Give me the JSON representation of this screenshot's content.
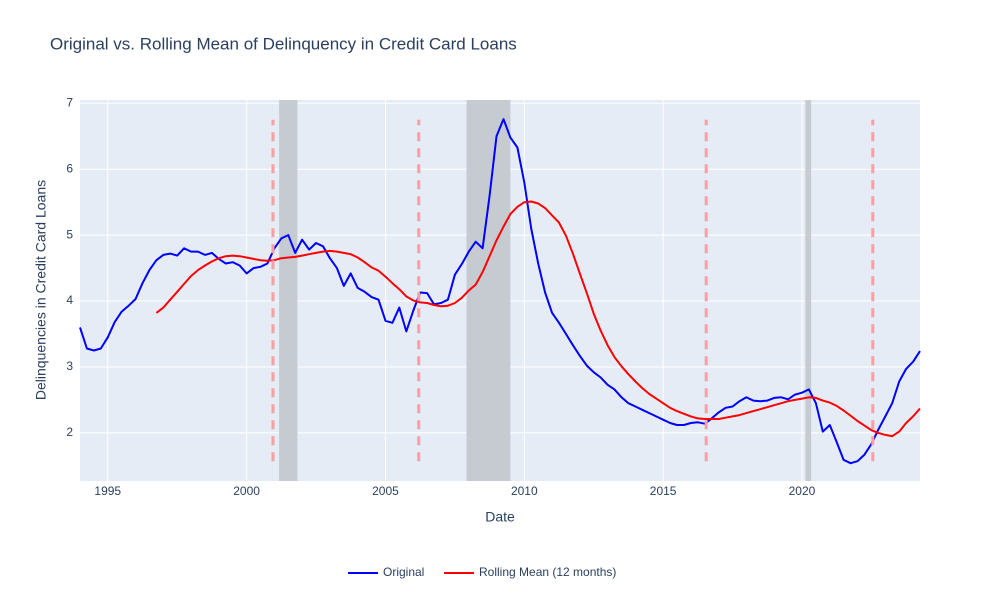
{
  "chart_data": {
    "type": "line",
    "title": "Original vs. Rolling Mean of Delinquency in Credit Card Loans",
    "x_label": "Date",
    "y_label": "Delinquencies in Credit Card Loans",
    "x": [
      1994,
      1994.25,
      1994.5,
      1994.75,
      1995,
      1995.25,
      1995.5,
      1995.75,
      1996,
      1996.25,
      1996.5,
      1996.75,
      1997,
      1997.25,
      1997.5,
      1997.75,
      1998,
      1998.25,
      1998.5,
      1998.75,
      1999,
      1999.25,
      1999.5,
      1999.75,
      2000,
      2000.25,
      2000.5,
      2000.75,
      2001,
      2001.25,
      2001.5,
      2001.75,
      2002,
      2002.25,
      2002.5,
      2002.75,
      2003,
      2003.25,
      2003.5,
      2003.75,
      2004,
      2004.25,
      2004.5,
      2004.75,
      2005,
      2005.25,
      2005.5,
      2005.75,
      2006,
      2006.25,
      2006.5,
      2006.75,
      2007,
      2007.25,
      2007.5,
      2007.75,
      2008,
      2008.25,
      2008.5,
      2008.75,
      2009,
      2009.25,
      2009.5,
      2009.75,
      2010,
      2010.25,
      2010.5,
      2010.75,
      2011,
      2011.25,
      2011.5,
      2011.75,
      2012,
      2012.25,
      2012.5,
      2012.75,
      2013,
      2013.25,
      2013.5,
      2013.75,
      2014,
      2014.25,
      2014.5,
      2014.75,
      2015,
      2015.25,
      2015.5,
      2015.75,
      2016,
      2016.25,
      2016.5,
      2016.75,
      2017,
      2017.25,
      2017.5,
      2017.75,
      2018,
      2018.25,
      2018.5,
      2018.75,
      2019,
      2019.25,
      2019.5,
      2019.75,
      2020,
      2020.25,
      2020.5,
      2020.75,
      2021,
      2021.25,
      2021.5,
      2021.75,
      2022,
      2022.25,
      2022.5,
      2022.75,
      2023,
      2023.25,
      2023.5,
      2023.75,
      2024,
      2024.25
    ],
    "series": [
      {
        "name": "Original",
        "color": "#0000ff",
        "values": [
          3.6,
          3.28,
          3.25,
          3.28,
          3.45,
          3.68,
          3.84,
          3.93,
          4.03,
          4.27,
          4.47,
          4.62,
          4.7,
          4.72,
          4.69,
          4.8,
          4.75,
          4.75,
          4.7,
          4.73,
          4.64,
          4.57,
          4.59,
          4.54,
          4.42,
          4.5,
          4.52,
          4.57,
          4.8,
          4.95,
          5.0,
          4.73,
          4.93,
          4.78,
          4.88,
          4.83,
          4.65,
          4.5,
          4.23,
          4.42,
          4.2,
          4.14,
          4.06,
          4.02,
          3.7,
          3.67,
          3.9,
          3.54,
          3.85,
          4.13,
          4.12,
          3.95,
          3.97,
          4.02,
          4.4,
          4.56,
          4.75,
          4.9,
          4.8,
          5.6,
          6.5,
          6.76,
          6.48,
          6.33,
          5.8,
          5.1,
          4.57,
          4.13,
          3.82,
          3.67,
          3.5,
          3.33,
          3.17,
          3.02,
          2.92,
          2.84,
          2.73,
          2.66,
          2.54,
          2.45,
          2.4,
          2.35,
          2.3,
          2.25,
          2.2,
          2.15,
          2.12,
          2.12,
          2.15,
          2.16,
          2.14,
          2.22,
          2.31,
          2.38,
          2.4,
          2.48,
          2.54,
          2.49,
          2.48,
          2.49,
          2.53,
          2.54,
          2.51,
          2.58,
          2.61,
          2.66,
          2.45,
          2.02,
          2.12,
          1.86,
          1.59,
          1.54,
          1.57,
          1.67,
          1.83,
          2.05,
          2.25,
          2.45,
          2.78,
          2.97,
          3.08,
          3.24
        ]
      },
      {
        "name": "Rolling Mean (12 months)",
        "color": "#ff0000",
        "values": [
          null,
          null,
          null,
          null,
          null,
          null,
          null,
          null,
          null,
          null,
          null,
          3.82,
          3.9,
          4.02,
          4.14,
          4.26,
          4.38,
          4.47,
          4.54,
          4.6,
          4.65,
          4.68,
          4.69,
          4.68,
          4.66,
          4.64,
          4.62,
          4.61,
          4.62,
          4.65,
          4.66,
          4.67,
          4.69,
          4.71,
          4.73,
          4.75,
          4.76,
          4.75,
          4.73,
          4.71,
          4.66,
          4.59,
          4.51,
          4.46,
          4.37,
          4.27,
          4.18,
          4.07,
          4.01,
          3.98,
          3.97,
          3.94,
          3.92,
          3.93,
          3.97,
          4.05,
          4.16,
          4.25,
          4.44,
          4.68,
          4.92,
          5.13,
          5.32,
          5.43,
          5.5,
          5.51,
          5.48,
          5.41,
          5.3,
          5.19,
          4.99,
          4.72,
          4.42,
          4.12,
          3.81,
          3.55,
          3.33,
          3.15,
          3.01,
          2.89,
          2.78,
          2.68,
          2.59,
          2.52,
          2.45,
          2.38,
          2.33,
          2.29,
          2.25,
          2.22,
          2.21,
          2.21,
          2.21,
          2.23,
          2.25,
          2.27,
          2.3,
          2.33,
          2.36,
          2.39,
          2.42,
          2.45,
          2.48,
          2.5,
          2.52,
          2.54,
          2.53,
          2.49,
          2.46,
          2.41,
          2.34,
          2.26,
          2.18,
          2.11,
          2.04,
          2.0,
          1.97,
          1.95,
          2.02,
          2.15,
          2.25,
          2.37
        ]
      }
    ],
    "shaded_regions": [
      {
        "x0": 2001.17,
        "x1": 2001.83
      },
      {
        "x0": 2007.92,
        "x1": 2009.5
      },
      {
        "x0": 2020.12,
        "x1": 2020.33
      }
    ],
    "shade_color": "#c6cbd2",
    "vlines": {
      "x": [
        2000.95,
        2006.2,
        2016.55,
        2022.55
      ],
      "y0": 1.57,
      "y1": 6.75,
      "color": "#f4a0a4"
    },
    "xlim": [
      1994,
      2024.25
    ],
    "xticks": [
      1995,
      2000,
      2005,
      2010,
      2015,
      2020
    ],
    "ylim": [
      1.27,
      7.05
    ],
    "yticks": [
      2,
      3,
      4,
      5,
      6,
      7
    ],
    "grid": true,
    "legend": "bottom"
  }
}
